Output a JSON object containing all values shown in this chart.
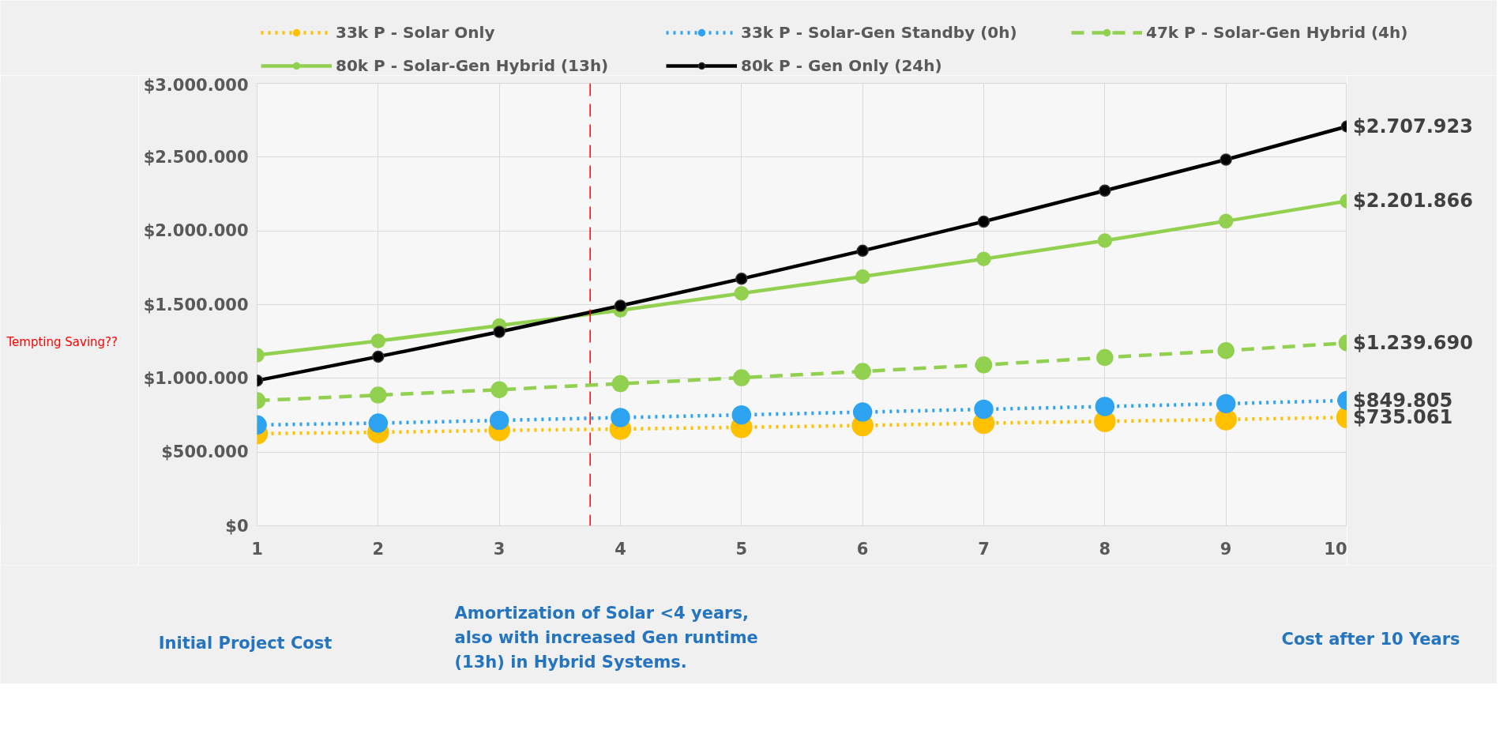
{
  "chart_data": {
    "type": "line",
    "x": [
      1,
      2,
      3,
      4,
      5,
      6,
      7,
      8,
      9,
      10
    ],
    "series": [
      {
        "name": "33k P - Solar Only",
        "color": "#ffc000",
        "line_style": "dotted",
        "marker": "circle",
        "values": [
          625000,
          634000,
          647000,
          656000,
          668000,
          680000,
          696000,
          708000,
          721000,
          735061
        ],
        "value_labels": [
          null,
          null,
          null,
          null,
          null,
          null,
          null,
          null,
          null,
          "$735.061"
        ]
      },
      {
        "name": "33k P - Solar-Gen Standby (0h)",
        "color": "#2ea3f2",
        "line_style": "dotted",
        "marker": "circle",
        "values": [
          684000,
          696000,
          715000,
          734000,
          752000,
          771000,
          790000,
          809000,
          828000,
          849805
        ],
        "value_labels": [
          null,
          null,
          null,
          null,
          null,
          null,
          null,
          null,
          null,
          "$849.805"
        ]
      },
      {
        "name": "47k P - Solar-Gen Hybrid (4h)",
        "color": "#92d050",
        "line_style": "dashed",
        "marker": "circle",
        "values": [
          849000,
          886000,
          923000,
          964000,
          1004000,
          1047000,
          1091000,
          1141000,
          1188000,
          1239690
        ],
        "value_labels": [
          null,
          null,
          null,
          null,
          null,
          null,
          null,
          null,
          null,
          "$1.239.690"
        ]
      },
      {
        "name": "80k P - Solar-Gen Hybrid (13h)",
        "color": "#92d050",
        "line_style": "solid",
        "marker": "circle",
        "values": [
          1157000,
          1253000,
          1358000,
          1461000,
          1576000,
          1690000,
          1809000,
          1934000,
          2066000,
          2201866
        ],
        "value_labels": [
          null,
          null,
          null,
          null,
          null,
          null,
          null,
          null,
          null,
          "$2.201.866"
        ]
      },
      {
        "name": "80k P - Gen Only (24h)",
        "color": "#000000",
        "line_style": "solid",
        "marker": "circle",
        "values": [
          985000,
          1147000,
          1315000,
          1492000,
          1675000,
          1865000,
          2063000,
          2273000,
          2483000,
          2707923
        ],
        "value_labels": [
          null,
          null,
          null,
          null,
          null,
          null,
          null,
          null,
          null,
          "$2.707.923"
        ]
      }
    ],
    "xlim": [
      1,
      10
    ],
    "xticks": [
      1,
      2,
      3,
      4,
      5,
      6,
      7,
      8,
      9,
      10
    ],
    "ylim": [
      0,
      3000000
    ],
    "yticks": [
      {
        "value": 0,
        "label": "$0"
      },
      {
        "value": 500000,
        "label": "$500.000"
      },
      {
        "value": 1000000,
        "label": "$1.000.000"
      },
      {
        "value": 1500000,
        "label": "$1.500.000"
      },
      {
        "value": 2000000,
        "label": "$2.000.000"
      },
      {
        "value": 2500000,
        "label": "$2.500.000"
      },
      {
        "value": 3000000,
        "label": "$3.000.000"
      }
    ],
    "grid": true,
    "legend": "top",
    "ref_lines": [
      {
        "axis": "x",
        "value": 3.75,
        "label": null,
        "color": "#ff0000",
        "line_style": "dashed"
      }
    ],
    "annotations": [
      "Tempting Saving??",
      "Initial Project Cost",
      "Amortization of Solar <4 years,\nalso with increased Gen runtime\n(13h) in Hybrid Systems.",
      "Cost after 10 Years"
    ]
  }
}
